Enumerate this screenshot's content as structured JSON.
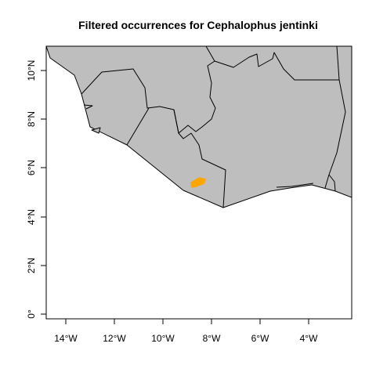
{
  "title": "Filtered occurrences for Cephalophus jentinki",
  "x_axis": {
    "ticks": [
      "14°W",
      "12°W",
      "10°W",
      "8°W",
      "6°W",
      "4°W"
    ]
  },
  "y_axis": {
    "ticks": [
      "0°",
      "2°N",
      "4°N",
      "6°N",
      "8°N",
      "10°N"
    ]
  },
  "colors": {
    "land": "#bebebe",
    "borders": "#000000",
    "occurrences": "#ffa500",
    "background": "#ffffff"
  },
  "occurrences": {
    "lon_range": [
      -8.9,
      -8.3
    ],
    "lat_range": [
      5.25,
      5.55
    ]
  }
}
